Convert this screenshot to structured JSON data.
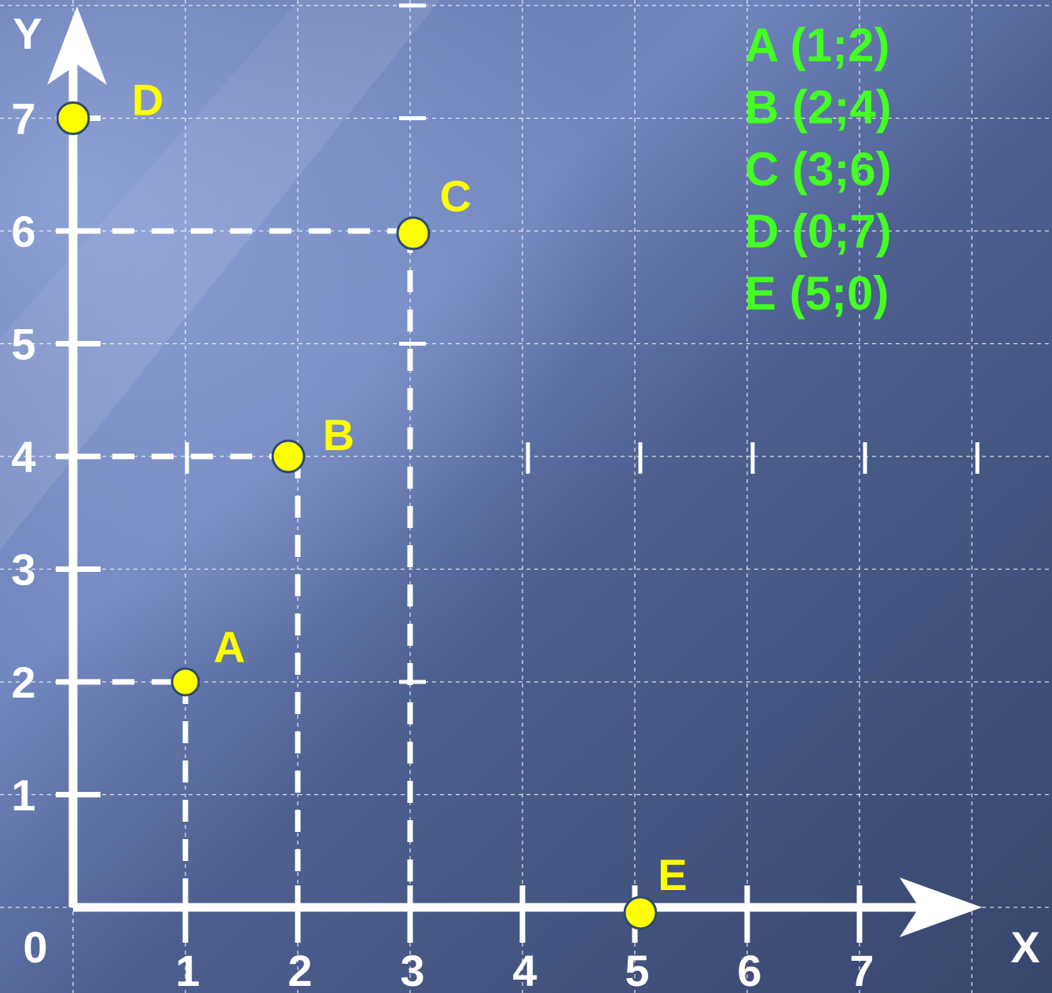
{
  "chart_data": {
    "type": "scatter",
    "title": "",
    "xlabel": "X",
    "ylabel": "Y",
    "origin_label": "0",
    "xlim": [
      0,
      8
    ],
    "ylim": [
      0,
      8
    ],
    "x_ticks": [
      "1",
      "2",
      "3",
      "4",
      "5",
      "6",
      "7"
    ],
    "y_ticks": [
      "1",
      "2",
      "3",
      "4",
      "5",
      "6",
      "7"
    ],
    "grid": true,
    "points": [
      {
        "name": "A",
        "x": 1,
        "y": 2
      },
      {
        "name": "B",
        "x": 2,
        "y": 4
      },
      {
        "name": "C",
        "x": 3,
        "y": 6
      },
      {
        "name": "D",
        "x": 0,
        "y": 7
      },
      {
        "name": "E",
        "x": 5,
        "y": 0
      }
    ],
    "legend": [
      "A (1;2)",
      "B (2;4)",
      "C (3;6)",
      "D (0;7)",
      "E (5;0)"
    ],
    "legend_position": "top-right",
    "colors": {
      "background": "#3e4d75",
      "background_highlight": "#8aa0d8",
      "axis": "#ffffff",
      "grid": "#ffffff",
      "point_fill": "#ffff00",
      "point_label": "#ffff00",
      "legend_text": "#44ff22",
      "axis_text": "#ffffff"
    }
  }
}
